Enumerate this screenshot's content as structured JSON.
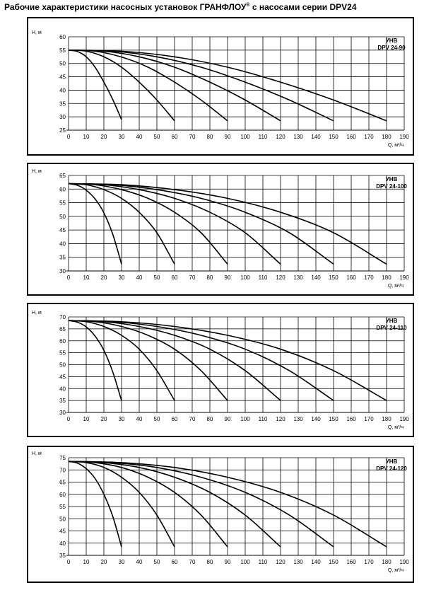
{
  "title": {
    "text": "Рабочие характеристики насосных установок  ГРАНФЛОУ",
    "mark": "®",
    "suffix": " с насосами серии DPV24"
  },
  "chart_data": [
    {
      "type": "line",
      "label_line1": "УНВ",
      "label_line2": "DPV 24-90",
      "ylabel": "Н, м",
      "xlabel": "Q, м³/ч",
      "xlim": [
        0,
        190
      ],
      "xticks": [
        0,
        10,
        20,
        30,
        40,
        50,
        60,
        70,
        80,
        90,
        100,
        110,
        120,
        130,
        140,
        150,
        160,
        170,
        180,
        190
      ],
      "ylim": [
        25,
        60
      ],
      "yticks": [
        25,
        30,
        35,
        40,
        45,
        50,
        55,
        60
      ],
      "grid": true,
      "series": [
        {
          "x": [
            0,
            5,
            10,
            15,
            20,
            25,
            30
          ],
          "y": [
            55,
            54.5,
            52.5,
            48.6,
            43,
            36.5,
            29
          ]
        },
        {
          "x": [
            0,
            10,
            20,
            30,
            40,
            50,
            60
          ],
          "y": [
            55,
            54.6,
            52.5,
            48.6,
            43,
            36.3,
            28.5
          ]
        },
        {
          "x": [
            0,
            15,
            30,
            45,
            60,
            75,
            90
          ],
          "y": [
            55,
            54.6,
            52.4,
            48.6,
            43,
            36.3,
            28.5
          ]
        },
        {
          "x": [
            0,
            20,
            40,
            60,
            80,
            100,
            120
          ],
          "y": [
            55,
            54.6,
            52.5,
            48.6,
            43,
            36.3,
            28.5
          ]
        },
        {
          "x": [
            0,
            25,
            50,
            75,
            100,
            125,
            150
          ],
          "y": [
            55,
            54.6,
            52.5,
            48.6,
            43,
            36.3,
            28.5
          ]
        },
        {
          "x": [
            0,
            30,
            60,
            90,
            120,
            150,
            180
          ],
          "y": [
            55,
            54.6,
            52.5,
            48.6,
            43,
            36.3,
            28.5
          ]
        }
      ]
    },
    {
      "type": "line",
      "label_line1": "УНВ",
      "label_line2": "DPV 24-100",
      "ylabel": "Н, м",
      "xlabel": "Q, м³/ч",
      "xlim": [
        0,
        190
      ],
      "xticks": [
        0,
        10,
        20,
        30,
        40,
        50,
        60,
        70,
        80,
        90,
        100,
        110,
        120,
        130,
        140,
        150,
        160,
        170,
        180,
        190
      ],
      "ylim": [
        30,
        65
      ],
      "yticks": [
        30,
        35,
        40,
        45,
        50,
        55,
        60,
        65
      ],
      "grid": true,
      "series": [
        {
          "x": [
            0,
            5,
            10,
            15,
            20,
            25,
            30
          ],
          "y": [
            62,
            61.4,
            59.6,
            56.4,
            51.3,
            43.5,
            32.5
          ]
        },
        {
          "x": [
            0,
            10,
            20,
            30,
            40,
            50,
            60
          ],
          "y": [
            62,
            61.6,
            59.8,
            56.6,
            51.5,
            44,
            32.5
          ]
        },
        {
          "x": [
            0,
            15,
            30,
            45,
            60,
            75,
            90
          ],
          "y": [
            62,
            61.6,
            59.8,
            56.6,
            51.5,
            44,
            32.5
          ]
        },
        {
          "x": [
            0,
            20,
            40,
            60,
            80,
            100,
            120
          ],
          "y": [
            62,
            61.6,
            59.8,
            56.6,
            51.5,
            44,
            32.5
          ]
        },
        {
          "x": [
            0,
            25,
            50,
            75,
            100,
            125,
            150
          ],
          "y": [
            62,
            61.6,
            59.8,
            56.6,
            51.5,
            44,
            32.5
          ]
        },
        {
          "x": [
            0,
            30,
            60,
            90,
            120,
            150,
            180
          ],
          "y": [
            62,
            61.6,
            59.8,
            56.6,
            51.5,
            44,
            32.5
          ]
        }
      ]
    },
    {
      "type": "line",
      "label_line1": "УНВ",
      "label_line2": "DPV 24-110",
      "ylabel": "Н, м",
      "xlabel": "Q, м³/ч",
      "xlim": [
        0,
        190
      ],
      "xticks": [
        0,
        10,
        20,
        30,
        40,
        50,
        60,
        70,
        80,
        90,
        100,
        110,
        120,
        130,
        140,
        150,
        160,
        170,
        180,
        190
      ],
      "ylim": [
        30,
        70
      ],
      "yticks": [
        30,
        35,
        40,
        45,
        50,
        55,
        60,
        65,
        70
      ],
      "grid": true,
      "series": [
        {
          "x": [
            0,
            5,
            10,
            15,
            20,
            25,
            30
          ],
          "y": [
            68.5,
            67.8,
            65.8,
            62,
            56,
            47,
            35
          ]
        },
        {
          "x": [
            0,
            10,
            20,
            30,
            40,
            50,
            60
          ],
          "y": [
            68.5,
            68,
            66,
            62.3,
            56.5,
            47.5,
            35
          ]
        },
        {
          "x": [
            0,
            15,
            30,
            45,
            60,
            75,
            90
          ],
          "y": [
            68.5,
            68,
            66,
            62.3,
            56.5,
            47.5,
            35
          ]
        },
        {
          "x": [
            0,
            20,
            40,
            60,
            80,
            100,
            120
          ],
          "y": [
            68.5,
            68,
            66,
            62.3,
            56.5,
            47.5,
            35
          ]
        },
        {
          "x": [
            0,
            25,
            50,
            75,
            100,
            125,
            150
          ],
          "y": [
            68.5,
            68,
            66,
            62.3,
            56.5,
            47.5,
            35
          ]
        },
        {
          "x": [
            0,
            30,
            60,
            90,
            120,
            150,
            180
          ],
          "y": [
            68.5,
            68,
            66,
            62.3,
            56.5,
            47.5,
            35
          ]
        }
      ]
    },
    {
      "type": "line",
      "label_line1": "УНВ",
      "label_line2": "DPV 24-120",
      "ylabel": "Н, м",
      "xlabel": "Q, м³/ч",
      "xlim": [
        0,
        190
      ],
      "xticks": [
        0,
        10,
        20,
        30,
        40,
        50,
        60,
        70,
        80,
        90,
        100,
        110,
        120,
        130,
        140,
        150,
        160,
        170,
        180,
        190
      ],
      "ylim": [
        35,
        75
      ],
      "yticks": [
        35,
        40,
        45,
        50,
        55,
        60,
        65,
        70,
        75
      ],
      "grid": true,
      "series": [
        {
          "x": [
            0,
            5,
            10,
            15,
            20,
            25,
            30
          ],
          "y": [
            73.5,
            72.8,
            70.5,
            66.5,
            60,
            51,
            38.5
          ]
        },
        {
          "x": [
            0,
            10,
            20,
            30,
            40,
            50,
            60
          ],
          "y": [
            73.5,
            73,
            71,
            67,
            60.8,
            51.5,
            38.5
          ]
        },
        {
          "x": [
            0,
            15,
            30,
            45,
            60,
            75,
            90
          ],
          "y": [
            73.5,
            73,
            71,
            67,
            60.8,
            51.5,
            38.5
          ]
        },
        {
          "x": [
            0,
            20,
            40,
            60,
            80,
            100,
            120
          ],
          "y": [
            73.5,
            73,
            71,
            67,
            60.8,
            51.5,
            38.5
          ]
        },
        {
          "x": [
            0,
            25,
            50,
            75,
            100,
            125,
            150
          ],
          "y": [
            73.5,
            73,
            71,
            67,
            60.8,
            51.5,
            38.5
          ]
        },
        {
          "x": [
            0,
            30,
            60,
            90,
            120,
            150,
            180
          ],
          "y": [
            73.5,
            73,
            71,
            67,
            60.8,
            51.5,
            38.5
          ]
        }
      ]
    }
  ]
}
